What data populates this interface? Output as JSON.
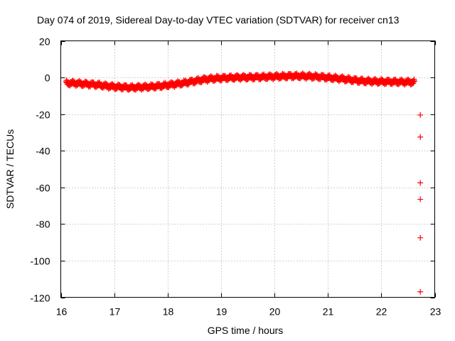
{
  "chart_data": {
    "type": "scatter",
    "title": "Day 074 of 2019, Sidereal Day-to-day VTEC variation (SDTVAR) for receiver cn13",
    "xlabel": "GPS time / hours",
    "ylabel": "SDTVAR / TECUs",
    "xlim": [
      16,
      23
    ],
    "ylim": [
      -120,
      20
    ],
    "x_ticks": [
      16,
      17,
      18,
      19,
      20,
      21,
      22,
      23
    ],
    "y_ticks": [
      -120,
      -100,
      -80,
      -60,
      -40,
      -20,
      0,
      20
    ],
    "x_tick_labels": [
      "16",
      "17",
      "18",
      "19",
      "20",
      "21",
      "22",
      "23"
    ],
    "y_tick_labels": [
      "-120",
      "-100",
      "-80",
      "-60",
      "-40",
      "-20",
      "0",
      "20"
    ],
    "grid": true,
    "marker": "+",
    "color": "#ff0000",
    "series": [
      {
        "name": "SDTVAR",
        "band_points": [
          {
            "x": 16.1,
            "y": -3.0
          },
          {
            "x": 16.3,
            "y": -3.2
          },
          {
            "x": 16.5,
            "y": -3.6
          },
          {
            "x": 16.7,
            "y": -4.0
          },
          {
            "x": 16.9,
            "y": -4.8
          },
          {
            "x": 17.1,
            "y": -5.2
          },
          {
            "x": 17.3,
            "y": -5.5
          },
          {
            "x": 17.5,
            "y": -5.3
          },
          {
            "x": 17.7,
            "y": -5.0
          },
          {
            "x": 17.9,
            "y": -4.5
          },
          {
            "x": 18.1,
            "y": -3.8
          },
          {
            "x": 18.3,
            "y": -3.0
          },
          {
            "x": 18.5,
            "y": -2.0
          },
          {
            "x": 18.7,
            "y": -1.0
          },
          {
            "x": 18.9,
            "y": -0.5
          },
          {
            "x": 19.1,
            "y": -0.2
          },
          {
            "x": 19.3,
            "y": 0.0
          },
          {
            "x": 19.5,
            "y": 0.1
          },
          {
            "x": 19.7,
            "y": 0.2
          },
          {
            "x": 19.9,
            "y": 0.4
          },
          {
            "x": 20.1,
            "y": 0.6
          },
          {
            "x": 20.3,
            "y": 0.8
          },
          {
            "x": 20.5,
            "y": 0.8
          },
          {
            "x": 20.7,
            "y": 0.6
          },
          {
            "x": 20.9,
            "y": 0.2
          },
          {
            "x": 21.1,
            "y": -0.3
          },
          {
            "x": 21.3,
            "y": -0.8
          },
          {
            "x": 21.5,
            "y": -1.5
          },
          {
            "x": 21.7,
            "y": -2.0
          },
          {
            "x": 21.9,
            "y": -2.2
          },
          {
            "x": 22.1,
            "y": -2.3
          },
          {
            "x": 22.3,
            "y": -2.4
          },
          {
            "x": 22.5,
            "y": -2.5
          },
          {
            "x": 22.62,
            "y": -2.5
          }
        ],
        "outliers": [
          {
            "x": 22.73,
            "y": -20.5
          },
          {
            "x": 22.73,
            "y": -32.5
          },
          {
            "x": 22.73,
            "y": -57.5
          },
          {
            "x": 22.73,
            "y": -66.5
          },
          {
            "x": 22.73,
            "y": -87.5
          },
          {
            "x": 22.73,
            "y": -117.0
          }
        ]
      }
    ]
  }
}
